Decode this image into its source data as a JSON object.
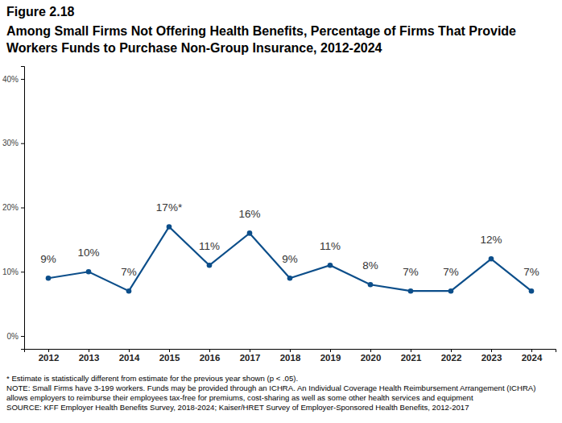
{
  "chart_data": {
    "type": "line",
    "title": "Figure 2.18",
    "subtitle": "Among Small Firms Not Offering Health Benefits, Percentage of Firms That Provide Workers Funds to Purchase Non-Group Insurance, 2012-2024",
    "categories": [
      "2012",
      "2013",
      "2014",
      "2015",
      "2016",
      "2017",
      "2018",
      "2019",
      "2020",
      "2021",
      "2022",
      "2023",
      "2024"
    ],
    "values": [
      9,
      10,
      7,
      17,
      11,
      16,
      9,
      11,
      8,
      7,
      7,
      12,
      7
    ],
    "value_labels": [
      "9%",
      "10%",
      "7%",
      "17%*",
      "11%",
      "16%",
      "9%",
      "11%",
      "8%",
      "7%",
      "7%",
      "12%",
      "7%"
    ],
    "color": "#0c4e8a",
    "marker": "circle",
    "data_labels": true,
    "grid": false,
    "ylim": [
      -2,
      42
    ],
    "yticks": [
      {
        "value": 0,
        "label": "0%"
      },
      {
        "value": 10,
        "label": "10%"
      },
      {
        "value": 20,
        "label": "20%"
      },
      {
        "value": 30,
        "label": "30%"
      },
      {
        "value": 40,
        "label": "40%"
      }
    ],
    "annotations": [
      "* Estimate is statistically different from estimate for the previous year shown (p < .05).",
      "NOTE: Small Firms have 3-199 workers. Funds may be provided through an ICHRA. An Individual Coverage Health Reimbursement Arrangement (ICHRA) allows employers to reimburse their employees tax-free for premiums, cost-sharing as well as some other health services and equipment",
      "SOURCE: KFF Employer Health Benefits Survey, 2018-2024; Kaiser/HRET Survey of Employer-Sponsored Health Benefits, 2012-2017"
    ]
  }
}
